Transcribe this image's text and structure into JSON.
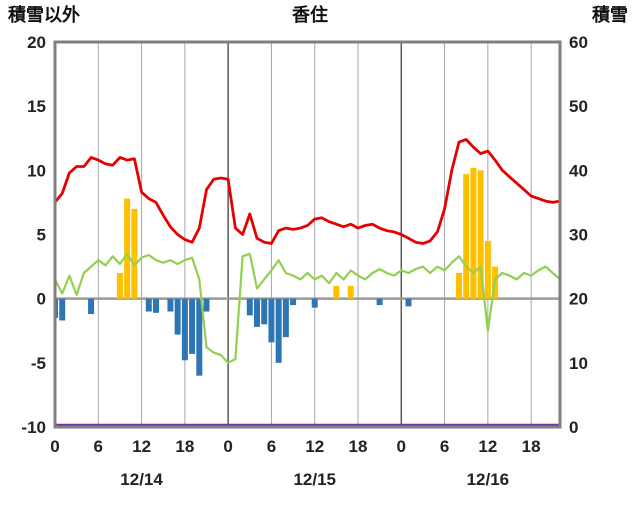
{
  "chart_data": {
    "type": "combo-line-bar",
    "title": "香住",
    "left_axis": {
      "title": "積雪以外",
      "min": -10,
      "max": 20,
      "ticks": [
        20,
        15,
        10,
        5,
        0,
        -5,
        -10
      ]
    },
    "right_axis": {
      "title": "積雪",
      "min": 0,
      "max": 60,
      "ticks": [
        60,
        50,
        40,
        30,
        20,
        10,
        0
      ]
    },
    "x_axis": {
      "hours_start": 0,
      "hours_end": 70,
      "tick_hours": [
        0,
        6,
        12,
        18,
        24,
        30,
        36,
        42,
        48,
        54,
        60,
        66
      ],
      "tick_labels": [
        "0",
        "6",
        "12",
        "18",
        "0",
        "6",
        "12",
        "18",
        "0",
        "6",
        "12",
        "18"
      ],
      "day_boundaries": [
        24,
        48
      ],
      "date_labels": [
        {
          "label": "12/14",
          "hour": 12
        },
        {
          "label": "12/15",
          "hour": 36
        },
        {
          "label": "12/16",
          "hour": 60
        }
      ]
    },
    "grid": {
      "minor_color": "#a6a6a6",
      "major_color": "#595959",
      "zero_line_color": "#9a9a9a",
      "frame_color": "#7f7f7f"
    },
    "series": {
      "red_line": {
        "axis": "left",
        "color": "#e60000",
        "values": [
          7.5,
          8.2,
          9.8,
          10.3,
          10.3,
          11.0,
          10.8,
          10.5,
          10.4,
          11.0,
          10.8,
          10.9,
          8.3,
          7.8,
          7.5,
          6.5,
          5.6,
          5.0,
          4.6,
          4.4,
          5.5,
          8.5,
          9.3,
          9.4,
          9.3,
          5.5,
          5.0,
          6.6,
          4.7,
          4.4,
          4.3,
          5.3,
          5.5,
          5.4,
          5.5,
          5.7,
          6.2,
          6.3,
          6.0,
          5.8,
          5.6,
          5.8,
          5.5,
          5.7,
          5.8,
          5.5,
          5.3,
          5.2,
          5.0,
          4.7,
          4.4,
          4.3,
          4.5,
          5.2,
          7.0,
          10.0,
          12.2,
          12.4,
          11.8,
          11.3,
          11.5,
          10.8,
          10.0,
          9.5,
          9.0,
          8.5,
          8.0,
          7.8,
          7.6,
          7.5,
          7.6
        ]
      },
      "green_line": {
        "axis": "left",
        "color": "#92d050",
        "values": [
          1.5,
          0.4,
          1.8,
          0.3,
          2.0,
          2.5,
          3.0,
          2.6,
          3.3,
          2.7,
          3.5,
          2.6,
          3.2,
          3.4,
          3.0,
          2.8,
          3.0,
          2.7,
          3.0,
          3.2,
          1.5,
          -3.8,
          -4.2,
          -4.4,
          -5.0,
          -4.7,
          3.3,
          3.5,
          0.8,
          1.5,
          2.2,
          3.0,
          2.0,
          1.8,
          1.5,
          2.0,
          1.5,
          1.8,
          1.2,
          2.0,
          1.5,
          2.2,
          1.8,
          1.5,
          2.0,
          2.3,
          2.0,
          1.8,
          2.2,
          2.0,
          2.3,
          2.5,
          2.0,
          2.5,
          2.2,
          2.8,
          3.3,
          2.5,
          2.0,
          2.5,
          -2.5,
          1.5,
          2.0,
          1.8,
          1.5,
          2.0,
          1.8,
          2.2,
          2.5,
          2.0,
          1.5
        ]
      },
      "purple_line": {
        "axis": "right",
        "color": "#7030a0",
        "constant": 0
      },
      "orange_bars": {
        "axis": "left",
        "color": "#ffc000",
        "values": {
          "9": 2.0,
          "10": 7.8,
          "11": 7.0,
          "39": 1.0,
          "41": 1.0,
          "56": 2.0,
          "57": 9.7,
          "58": 10.2,
          "59": 10.0,
          "60": 4.5,
          "61": 2.5
        }
      },
      "blue_bars": {
        "axis": "left",
        "color": "#2e75b6",
        "values": {
          "0": -1.5,
          "1": -1.7,
          "5": -1.2,
          "13": -1.0,
          "14": -1.1,
          "16": -1.0,
          "17": -2.8,
          "18": -4.8,
          "19": -4.3,
          "20": -6.0,
          "21": -1.0,
          "27": -1.3,
          "28": -2.2,
          "29": -2.0,
          "30": -3.4,
          "31": -5.0,
          "32": -3.0,
          "33": -0.5,
          "36": -0.7,
          "45": -0.5,
          "49": -0.6
        }
      }
    }
  }
}
